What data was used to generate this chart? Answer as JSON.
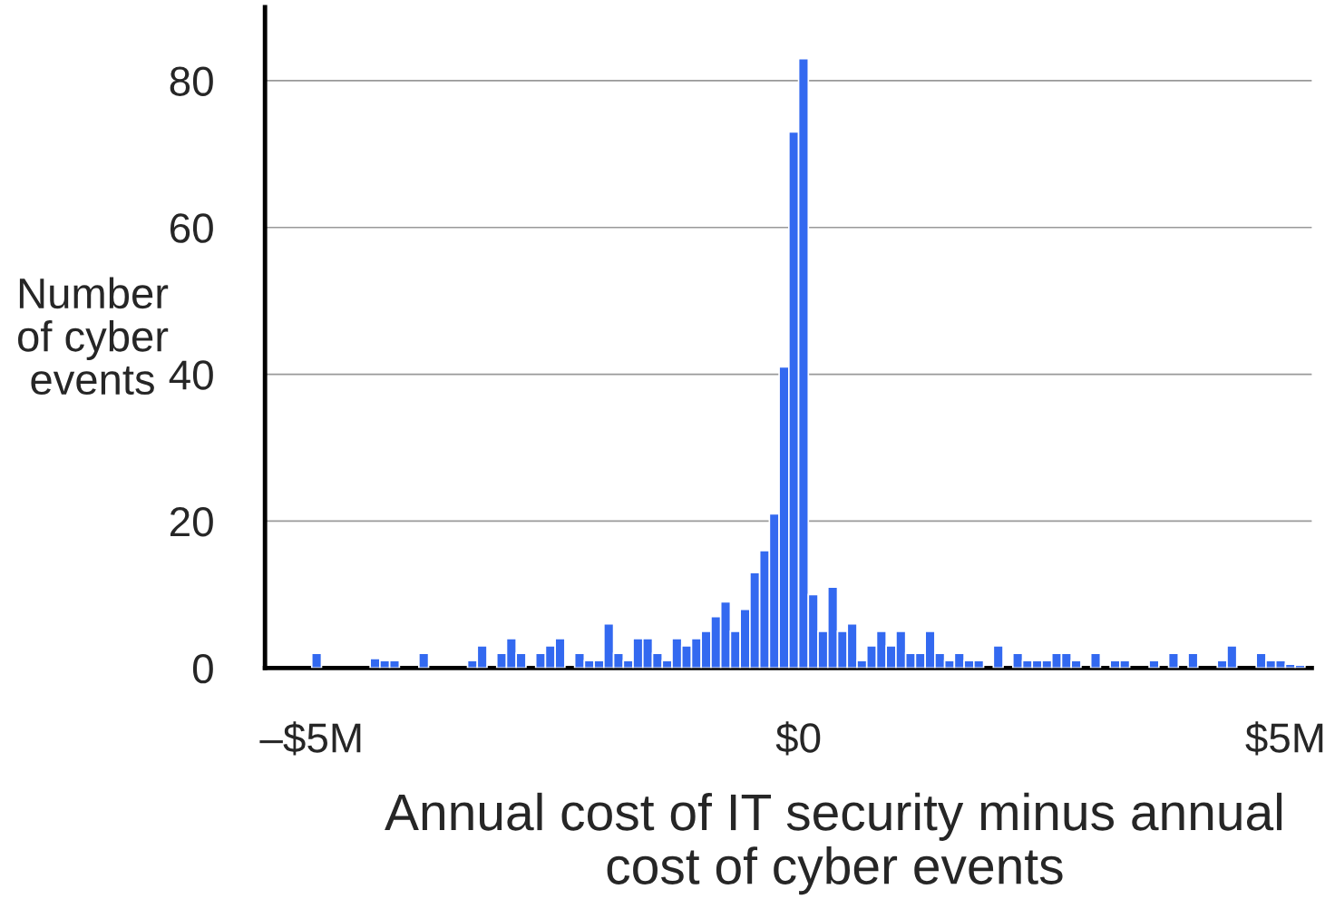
{
  "chart_data": {
    "type": "histogram",
    "xlabel": "Annual cost of IT security minus annual cost of cyber events",
    "ylabel": "Number of cyber events",
    "bins": [
      -5.0,
      -4.9,
      -4.8,
      -4.7,
      -4.6,
      -4.5,
      -4.4,
      -4.3,
      -4.2,
      -4.1,
      -4.0,
      -3.9,
      -3.8,
      -3.7,
      -3.6,
      -3.5,
      -3.4,
      -3.3,
      -3.2,
      -3.1,
      -3.0,
      -2.9,
      -2.8,
      -2.7,
      -2.6,
      -2.5,
      -2.4,
      -2.3,
      -2.2,
      -2.1,
      -2.0,
      -1.9,
      -1.8,
      -1.7,
      -1.6,
      -1.5,
      -1.4,
      -1.3,
      -1.2,
      -1.1,
      -1.0,
      -0.9,
      -0.8,
      -0.7,
      -0.6,
      -0.5,
      -0.4,
      -0.3,
      -0.2,
      -0.1,
      0.0,
      0.1,
      0.2,
      0.3,
      0.4,
      0.5,
      0.6,
      0.7,
      0.8,
      0.9,
      1.0,
      1.1,
      1.2,
      1.3,
      1.4,
      1.5,
      1.6,
      1.7,
      1.8,
      1.9,
      2.0,
      2.1,
      2.2,
      2.3,
      2.4,
      2.5,
      2.6,
      2.7,
      2.8,
      2.9,
      3.0,
      3.1,
      3.2,
      3.3,
      3.4,
      3.5,
      3.6,
      3.7,
      3.8,
      3.9,
      4.0,
      4.1,
      4.2,
      4.3,
      4.4,
      4.5,
      4.6,
      4.7,
      4.8,
      4.9,
      5.0,
      5.1,
      5.2
    ],
    "values": [
      2,
      0,
      0,
      0,
      0,
      0,
      1.3,
      1,
      1,
      0,
      0,
      2,
      0,
      0,
      0,
      0,
      1,
      3,
      0,
      2,
      4,
      2,
      0,
      2,
      3,
      4,
      0,
      2,
      1,
      1,
      6,
      2,
      1,
      4,
      4,
      2,
      1,
      4,
      3,
      4,
      5,
      7,
      9,
      5,
      8,
      13,
      16,
      21,
      41,
      73,
      83,
      10,
      5,
      11,
      5,
      6,
      1,
      3,
      5,
      3,
      5,
      2,
      2,
      5,
      2,
      1,
      2,
      1,
      1,
      0,
      3,
      0,
      2,
      1,
      1,
      1,
      2,
      2,
      1,
      0,
      2,
      0,
      1,
      1,
      0,
      0,
      1,
      0,
      2,
      0,
      2,
      0,
      0,
      1,
      3,
      0,
      0,
      2,
      1,
      1,
      0.5,
      0.4
    ],
    "color": "#3369f0",
    "xlim": [
      -5.48,
      5.27
    ],
    "xticks": [
      {
        "value": -5,
        "label": "–$5M"
      },
      {
        "value": 0,
        "label": "$0"
      },
      {
        "value": 5,
        "label": "$5M"
      }
    ],
    "ylim": [
      0,
      90
    ],
    "yticks": [
      0,
      20,
      40,
      60,
      80
    ],
    "grid": "y"
  }
}
